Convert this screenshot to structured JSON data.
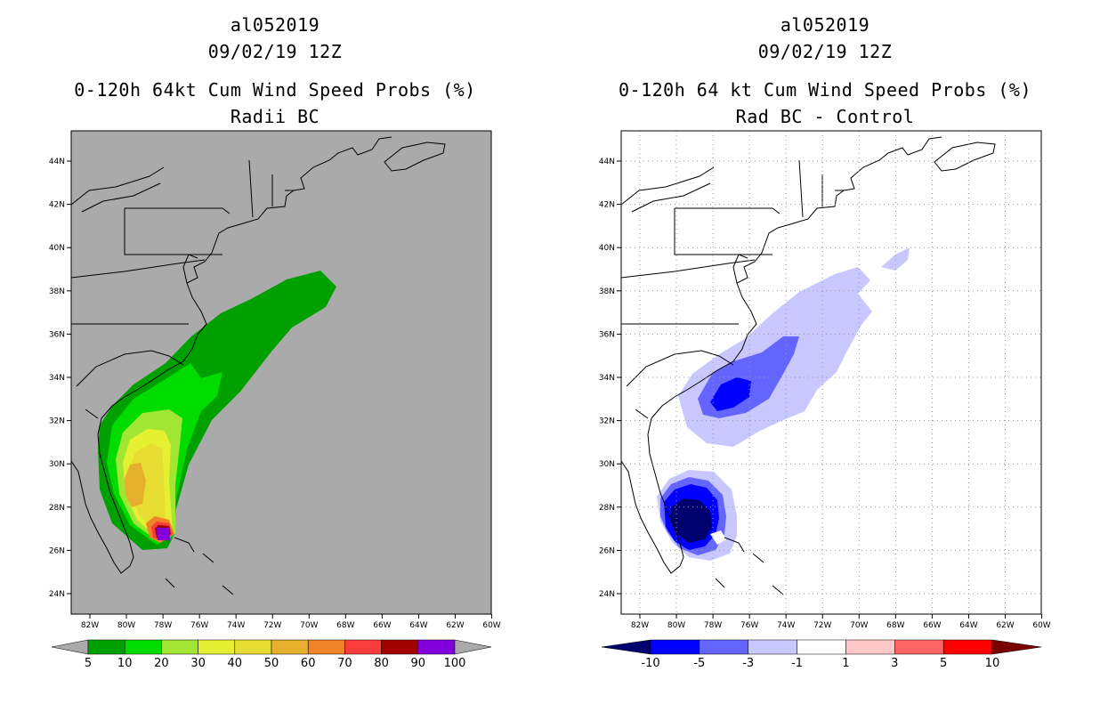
{
  "left": {
    "title_lines": [
      "al052019",
      "09/02/19 12Z",
      "0-120h 64kt Cum Wind Speed Probs (%)",
      "Radii BC"
    ],
    "background": "#aaaaaa",
    "colorbar": {
      "colors": [
        "#00a000",
        "#00dc00",
        "#a0e632",
        "#e6f032",
        "#e6dc32",
        "#e6af2d",
        "#f08228",
        "#fa3c3c",
        "#a00000",
        "#8200dc"
      ],
      "labels": [
        "5",
        "10",
        "20",
        "30",
        "40",
        "50",
        "60",
        "70",
        "80",
        "90",
        "100"
      ]
    }
  },
  "right": {
    "title_lines": [
      "al052019",
      "09/02/19 12Z",
      "0-120h 64 kt Cum Wind Speed Probs (%)",
      "Rad BC - Control"
    ],
    "background": "#ffffff",
    "colorbar": {
      "colors": [
        "#0000ff",
        "#6464ff",
        "#c8c8ff",
        "#ffffff",
        "#ffc8c8",
        "#ff6464",
        "#ff0000"
      ],
      "end_low": "#00006e",
      "end_high": "#780000",
      "labels": [
        "-10",
        "-5",
        "-3",
        "-1",
        "1",
        "3",
        "5",
        "10"
      ]
    }
  },
  "axes": {
    "lon_labels": [
      "82W",
      "80W",
      "78W",
      "76W",
      "74W",
      "72W",
      "70W",
      "68W",
      "66W",
      "64W",
      "62W",
      "60W"
    ],
    "lat_labels": [
      "24N",
      "26N",
      "28N",
      "30N",
      "32N",
      "34N",
      "36N",
      "38N",
      "40N",
      "42N",
      "44N"
    ]
  }
}
